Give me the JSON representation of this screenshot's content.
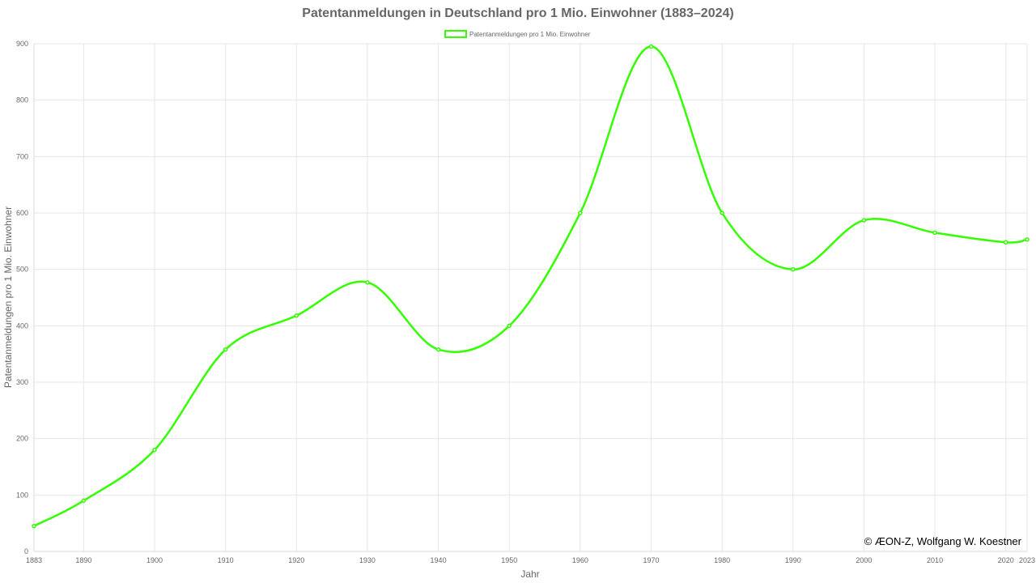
{
  "chart_data": {
    "type": "line",
    "title": "Patentanmeldungen in Deutschland pro 1 Mio. Einwohner (1883–2024)",
    "xlabel": "Jahr",
    "ylabel": "Patentanmeldungen pro 1 Mio. Einwohner",
    "categories": [
      "1883",
      "1890",
      "1900",
      "1910",
      "1920",
      "1930",
      "1940",
      "1950",
      "1960",
      "1970",
      "1980",
      "1990",
      "2000",
      "2010",
      "2020",
      "2023"
    ],
    "series": [
      {
        "name": "Patentanmeldungen pro 1 Mio. Einwohner",
        "values": [
          45,
          90,
          180,
          358,
          418,
          477,
          358,
          400,
          600,
          895,
          600,
          500,
          587,
          565,
          548,
          553
        ],
        "color": "#33ff00"
      }
    ],
    "ylim": [
      0,
      900
    ],
    "yticks": [
      0,
      100,
      200,
      300,
      400,
      500,
      600,
      700,
      800,
      900
    ],
    "grid": true,
    "legend_position": "top-center",
    "copyright": "© ÆON-Z, Wolfgang W. Koestner"
  }
}
